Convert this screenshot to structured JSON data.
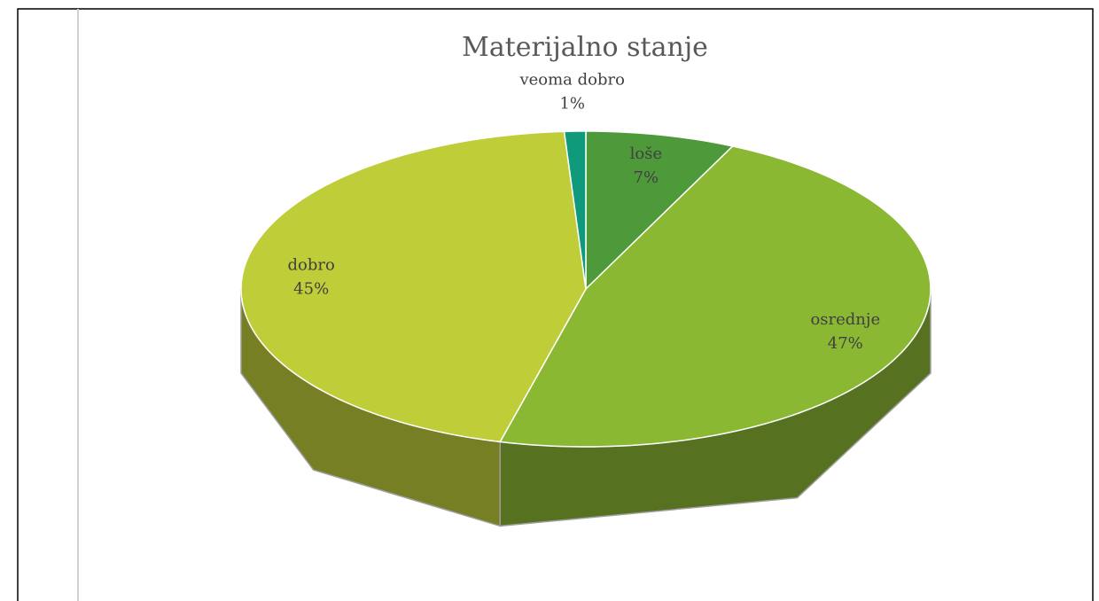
{
  "chart_data": {
    "type": "pie",
    "title": "Materijalno stanje",
    "categories": [
      "loše",
      "osrednje",
      "dobro",
      "veoma dobro"
    ],
    "values": [
      7,
      47,
      45,
      1
    ],
    "value_labels": [
      "7%",
      "47%",
      "45%",
      "1%"
    ],
    "colors": [
      "#4e9a3a",
      "#8ab833",
      "#bfcd38",
      "#0f9a7c"
    ]
  }
}
